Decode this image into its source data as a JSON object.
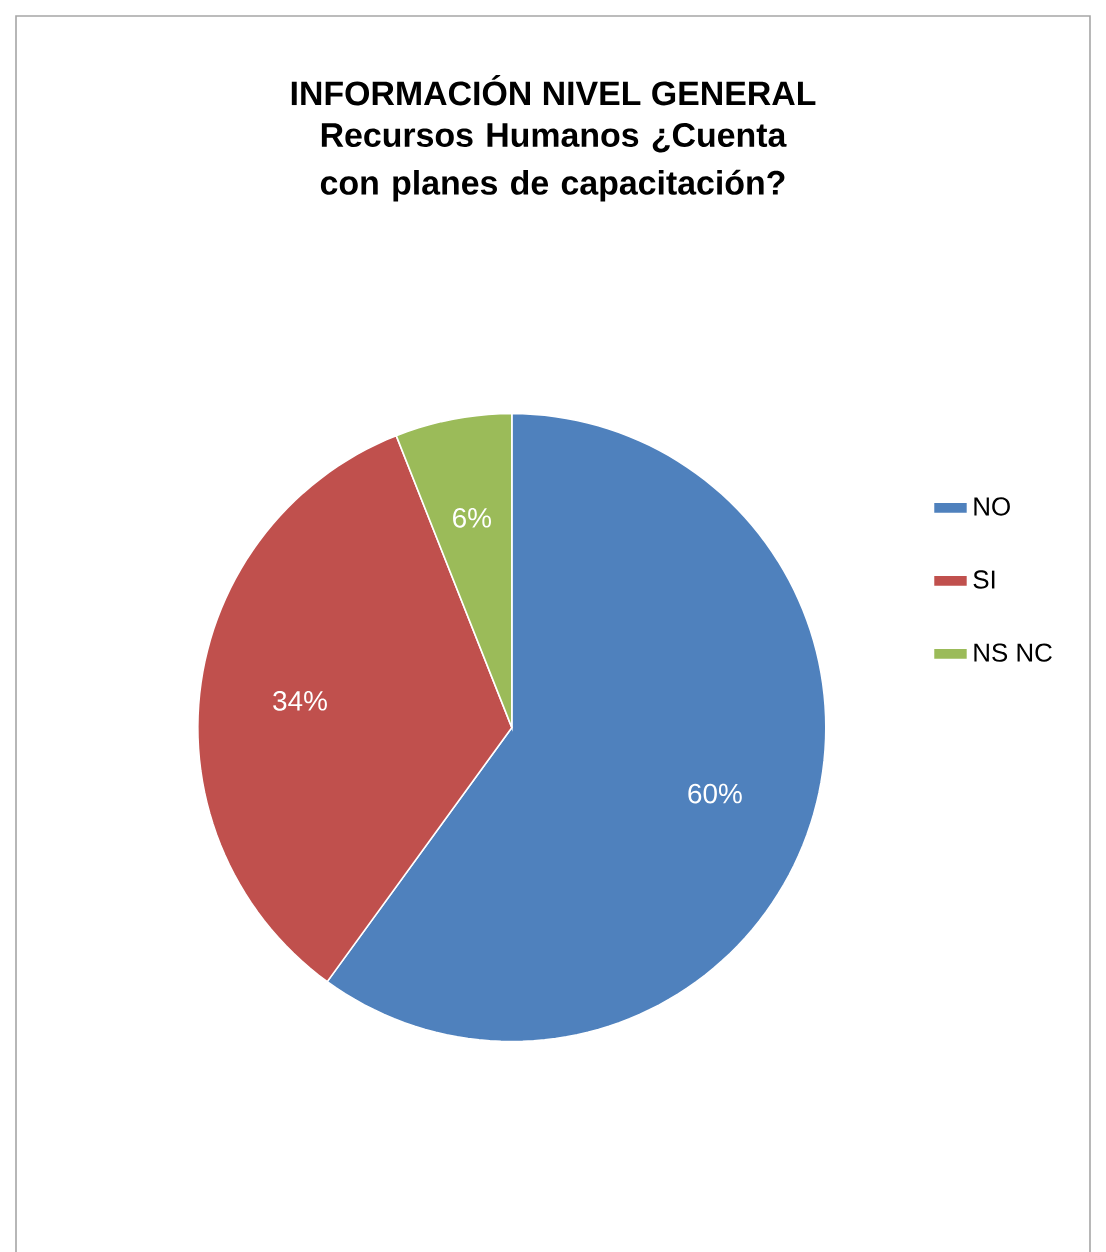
{
  "chart_data": {
    "type": "pie",
    "title": "INFORMACIÓN NIVEL GENERAL",
    "subtitle": "Recursos Humanos ¿Cuenta con planes de capacitación?",
    "categories": [
      "NO",
      "SI",
      "NS NC"
    ],
    "values": [
      60,
      34,
      6
    ],
    "value_labels": [
      "60%",
      "34%",
      "6%"
    ],
    "colors": [
      "#4f81bd",
      "#c0504d",
      "#9bbb59"
    ],
    "legend": "right"
  }
}
